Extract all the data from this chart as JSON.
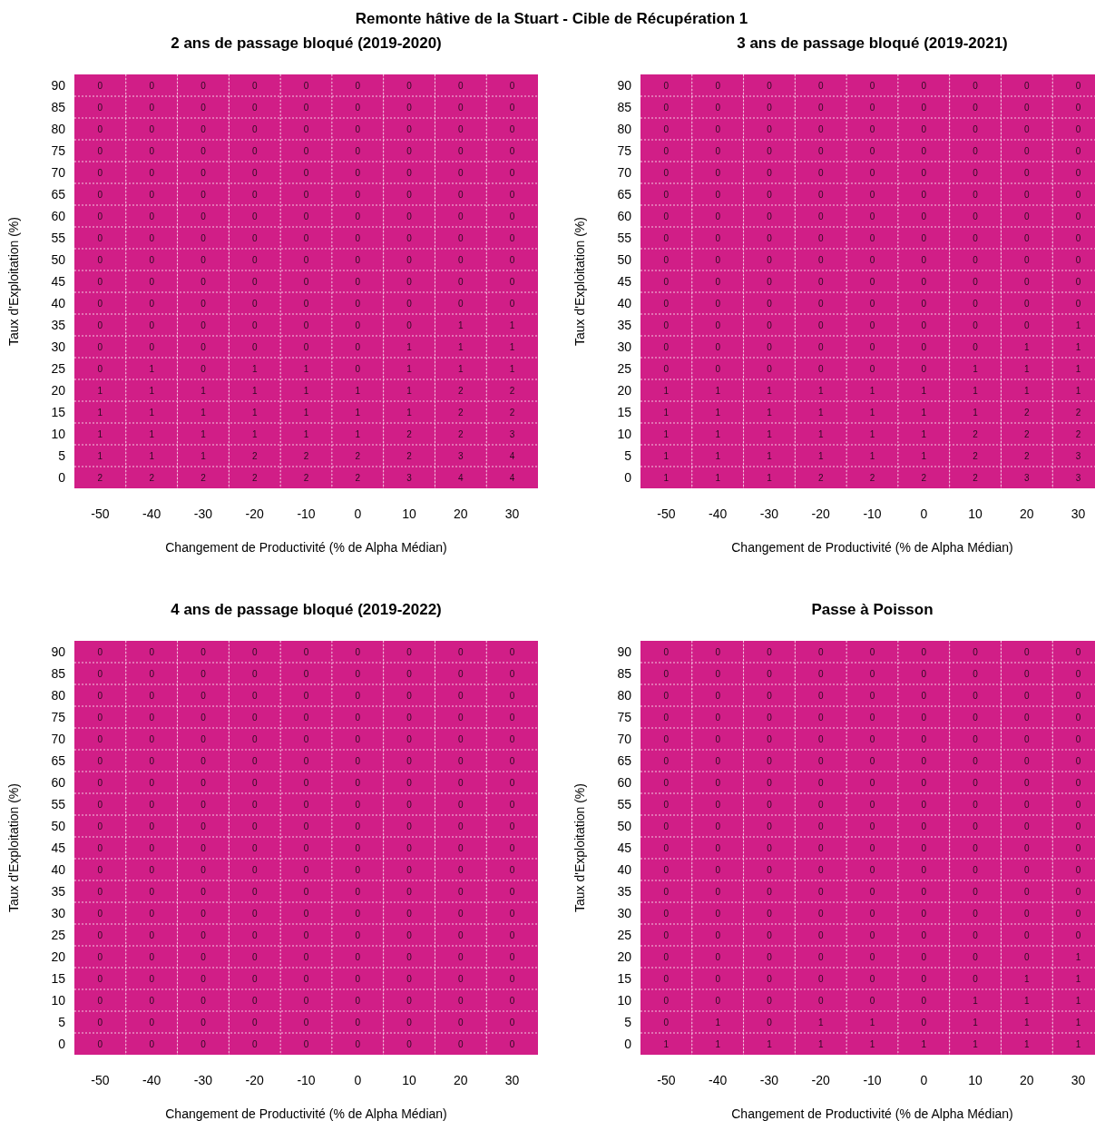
{
  "chart_data": [
    {
      "type": "heatmap",
      "title": "2 ans de passage bloqué (2019-2020)",
      "annotations": [
        "Remonte hâtive de la Stuart - Cible de Récupération 1"
      ],
      "xlabel": "Changement de Productivité (% de Alpha Médian)",
      "ylabel": "Taux d'Exploitation (%)",
      "color": "#d11e87",
      "grid": true,
      "data_labels": true,
      "categories": [
        "-50",
        "-40",
        "-30",
        "-20",
        "-10",
        "0",
        "10",
        "20",
        "30"
      ],
      "y_categories": [
        "90",
        "85",
        "80",
        "75",
        "70",
        "65",
        "60",
        "55",
        "50",
        "45",
        "40",
        "35",
        "30",
        "25",
        "20",
        "15",
        "10",
        "5",
        "0"
      ],
      "cells": [
        [
          0,
          0,
          0,
          0,
          0,
          0,
          0,
          0,
          0
        ],
        [
          0,
          0,
          0,
          0,
          0,
          0,
          0,
          0,
          0
        ],
        [
          0,
          0,
          0,
          0,
          0,
          0,
          0,
          0,
          0
        ],
        [
          0,
          0,
          0,
          0,
          0,
          0,
          0,
          0,
          0
        ],
        [
          0,
          0,
          0,
          0,
          0,
          0,
          0,
          0,
          0
        ],
        [
          0,
          0,
          0,
          0,
          0,
          0,
          0,
          0,
          0
        ],
        [
          0,
          0,
          0,
          0,
          0,
          0,
          0,
          0,
          0
        ],
        [
          0,
          0,
          0,
          0,
          0,
          0,
          0,
          0,
          0
        ],
        [
          0,
          0,
          0,
          0,
          0,
          0,
          0,
          0,
          0
        ],
        [
          0,
          0,
          0,
          0,
          0,
          0,
          0,
          0,
          0
        ],
        [
          0,
          0,
          0,
          0,
          0,
          0,
          0,
          0,
          0
        ],
        [
          0,
          0,
          0,
          0,
          0,
          0,
          0,
          1,
          1
        ],
        [
          0,
          0,
          0,
          0,
          0,
          0,
          1,
          1,
          1
        ],
        [
          0,
          1,
          0,
          1,
          1,
          0,
          1,
          1,
          1
        ],
        [
          1,
          1,
          1,
          1,
          1,
          1,
          1,
          2,
          2
        ],
        [
          1,
          1,
          1,
          1,
          1,
          1,
          1,
          2,
          2
        ],
        [
          1,
          1,
          1,
          1,
          1,
          1,
          2,
          2,
          3
        ],
        [
          1,
          1,
          1,
          2,
          2,
          2,
          2,
          3,
          4
        ],
        [
          2,
          2,
          2,
          2,
          2,
          2,
          3,
          4,
          4
        ]
      ]
    },
    {
      "type": "heatmap",
      "title": "3 ans de passage bloqué (2019-2021)",
      "xlabel": "Changement de Productivité (% de Alpha Médian)",
      "ylabel": "Taux d'Exploitation (%)",
      "color": "#d11e87",
      "grid": true,
      "data_labels": true,
      "categories": [
        "-50",
        "-40",
        "-30",
        "-20",
        "-10",
        "0",
        "10",
        "20",
        "30"
      ],
      "y_categories": [
        "90",
        "85",
        "80",
        "75",
        "70",
        "65",
        "60",
        "55",
        "50",
        "45",
        "40",
        "35",
        "30",
        "25",
        "20",
        "15",
        "10",
        "5",
        "0"
      ],
      "cells": [
        [
          0,
          0,
          0,
          0,
          0,
          0,
          0,
          0,
          0
        ],
        [
          0,
          0,
          0,
          0,
          0,
          0,
          0,
          0,
          0
        ],
        [
          0,
          0,
          0,
          0,
          0,
          0,
          0,
          0,
          0
        ],
        [
          0,
          0,
          0,
          0,
          0,
          0,
          0,
          0,
          0
        ],
        [
          0,
          0,
          0,
          0,
          0,
          0,
          0,
          0,
          0
        ],
        [
          0,
          0,
          0,
          0,
          0,
          0,
          0,
          0,
          0
        ],
        [
          0,
          0,
          0,
          0,
          0,
          0,
          0,
          0,
          0
        ],
        [
          0,
          0,
          0,
          0,
          0,
          0,
          0,
          0,
          0
        ],
        [
          0,
          0,
          0,
          0,
          0,
          0,
          0,
          0,
          0
        ],
        [
          0,
          0,
          0,
          0,
          0,
          0,
          0,
          0,
          0
        ],
        [
          0,
          0,
          0,
          0,
          0,
          0,
          0,
          0,
          0
        ],
        [
          0,
          0,
          0,
          0,
          0,
          0,
          0,
          0,
          1
        ],
        [
          0,
          0,
          0,
          0,
          0,
          0,
          0,
          1,
          1
        ],
        [
          0,
          0,
          0,
          0,
          0,
          0,
          1,
          1,
          1
        ],
        [
          1,
          1,
          1,
          1,
          1,
          1,
          1,
          1,
          1
        ],
        [
          1,
          1,
          1,
          1,
          1,
          1,
          1,
          2,
          2
        ],
        [
          1,
          1,
          1,
          1,
          1,
          1,
          2,
          2,
          2
        ],
        [
          1,
          1,
          1,
          1,
          1,
          1,
          2,
          2,
          3
        ],
        [
          1,
          1,
          1,
          2,
          2,
          2,
          2,
          3,
          3
        ]
      ]
    },
    {
      "type": "heatmap",
      "title": "4 ans de passage bloqué (2019-2022)",
      "xlabel": "Changement de Productivité (% de Alpha Médian)",
      "ylabel": "Taux d'Exploitation (%)",
      "color": "#d11e87",
      "grid": true,
      "data_labels": true,
      "categories": [
        "-50",
        "-40",
        "-30",
        "-20",
        "-10",
        "0",
        "10",
        "20",
        "30"
      ],
      "y_categories": [
        "90",
        "85",
        "80",
        "75",
        "70",
        "65",
        "60",
        "55",
        "50",
        "45",
        "40",
        "35",
        "30",
        "25",
        "20",
        "15",
        "10",
        "5",
        "0"
      ],
      "cells": [
        [
          0,
          0,
          0,
          0,
          0,
          0,
          0,
          0,
          0
        ],
        [
          0,
          0,
          0,
          0,
          0,
          0,
          0,
          0,
          0
        ],
        [
          0,
          0,
          0,
          0,
          0,
          0,
          0,
          0,
          0
        ],
        [
          0,
          0,
          0,
          0,
          0,
          0,
          0,
          0,
          0
        ],
        [
          0,
          0,
          0,
          0,
          0,
          0,
          0,
          0,
          0
        ],
        [
          0,
          0,
          0,
          0,
          0,
          0,
          0,
          0,
          0
        ],
        [
          0,
          0,
          0,
          0,
          0,
          0,
          0,
          0,
          0
        ],
        [
          0,
          0,
          0,
          0,
          0,
          0,
          0,
          0,
          0
        ],
        [
          0,
          0,
          0,
          0,
          0,
          0,
          0,
          0,
          0
        ],
        [
          0,
          0,
          0,
          0,
          0,
          0,
          0,
          0,
          0
        ],
        [
          0,
          0,
          0,
          0,
          0,
          0,
          0,
          0,
          0
        ],
        [
          0,
          0,
          0,
          0,
          0,
          0,
          0,
          0,
          0
        ],
        [
          0,
          0,
          0,
          0,
          0,
          0,
          0,
          0,
          0
        ],
        [
          0,
          0,
          0,
          0,
          0,
          0,
          0,
          0,
          0
        ],
        [
          0,
          0,
          0,
          0,
          0,
          0,
          0,
          0,
          0
        ],
        [
          0,
          0,
          0,
          0,
          0,
          0,
          0,
          0,
          0
        ],
        [
          0,
          0,
          0,
          0,
          0,
          0,
          0,
          0,
          0
        ],
        [
          0,
          0,
          0,
          0,
          0,
          0,
          0,
          0,
          0
        ],
        [
          0,
          0,
          0,
          0,
          0,
          0,
          0,
          0,
          0
        ]
      ]
    },
    {
      "type": "heatmap",
      "title": "Passe à Poisson",
      "xlabel": "Changement de Productivité (% de Alpha Médian)",
      "ylabel": "Taux d'Exploitation (%)",
      "color": "#d11e87",
      "grid": true,
      "data_labels": true,
      "categories": [
        "-50",
        "-40",
        "-30",
        "-20",
        "-10",
        "0",
        "10",
        "20",
        "30"
      ],
      "y_categories": [
        "90",
        "85",
        "80",
        "75",
        "70",
        "65",
        "60",
        "55",
        "50",
        "45",
        "40",
        "35",
        "30",
        "25",
        "20",
        "15",
        "10",
        "5",
        "0"
      ],
      "cells": [
        [
          0,
          0,
          0,
          0,
          0,
          0,
          0,
          0,
          0
        ],
        [
          0,
          0,
          0,
          0,
          0,
          0,
          0,
          0,
          0
        ],
        [
          0,
          0,
          0,
          0,
          0,
          0,
          0,
          0,
          0
        ],
        [
          0,
          0,
          0,
          0,
          0,
          0,
          0,
          0,
          0
        ],
        [
          0,
          0,
          0,
          0,
          0,
          0,
          0,
          0,
          0
        ],
        [
          0,
          0,
          0,
          0,
          0,
          0,
          0,
          0,
          0
        ],
        [
          0,
          0,
          0,
          0,
          0,
          0,
          0,
          0,
          0
        ],
        [
          0,
          0,
          0,
          0,
          0,
          0,
          0,
          0,
          0
        ],
        [
          0,
          0,
          0,
          0,
          0,
          0,
          0,
          0,
          0
        ],
        [
          0,
          0,
          0,
          0,
          0,
          0,
          0,
          0,
          0
        ],
        [
          0,
          0,
          0,
          0,
          0,
          0,
          0,
          0,
          0
        ],
        [
          0,
          0,
          0,
          0,
          0,
          0,
          0,
          0,
          0
        ],
        [
          0,
          0,
          0,
          0,
          0,
          0,
          0,
          0,
          0
        ],
        [
          0,
          0,
          0,
          0,
          0,
          0,
          0,
          0,
          0
        ],
        [
          0,
          0,
          0,
          0,
          0,
          0,
          0,
          0,
          1
        ],
        [
          0,
          0,
          0,
          0,
          0,
          0,
          0,
          1,
          1
        ],
        [
          0,
          0,
          0,
          0,
          0,
          0,
          1,
          1,
          1
        ],
        [
          0,
          1,
          0,
          1,
          1,
          0,
          1,
          1,
          1
        ],
        [
          1,
          1,
          1,
          1,
          1,
          1,
          1,
          1,
          1
        ]
      ]
    }
  ]
}
